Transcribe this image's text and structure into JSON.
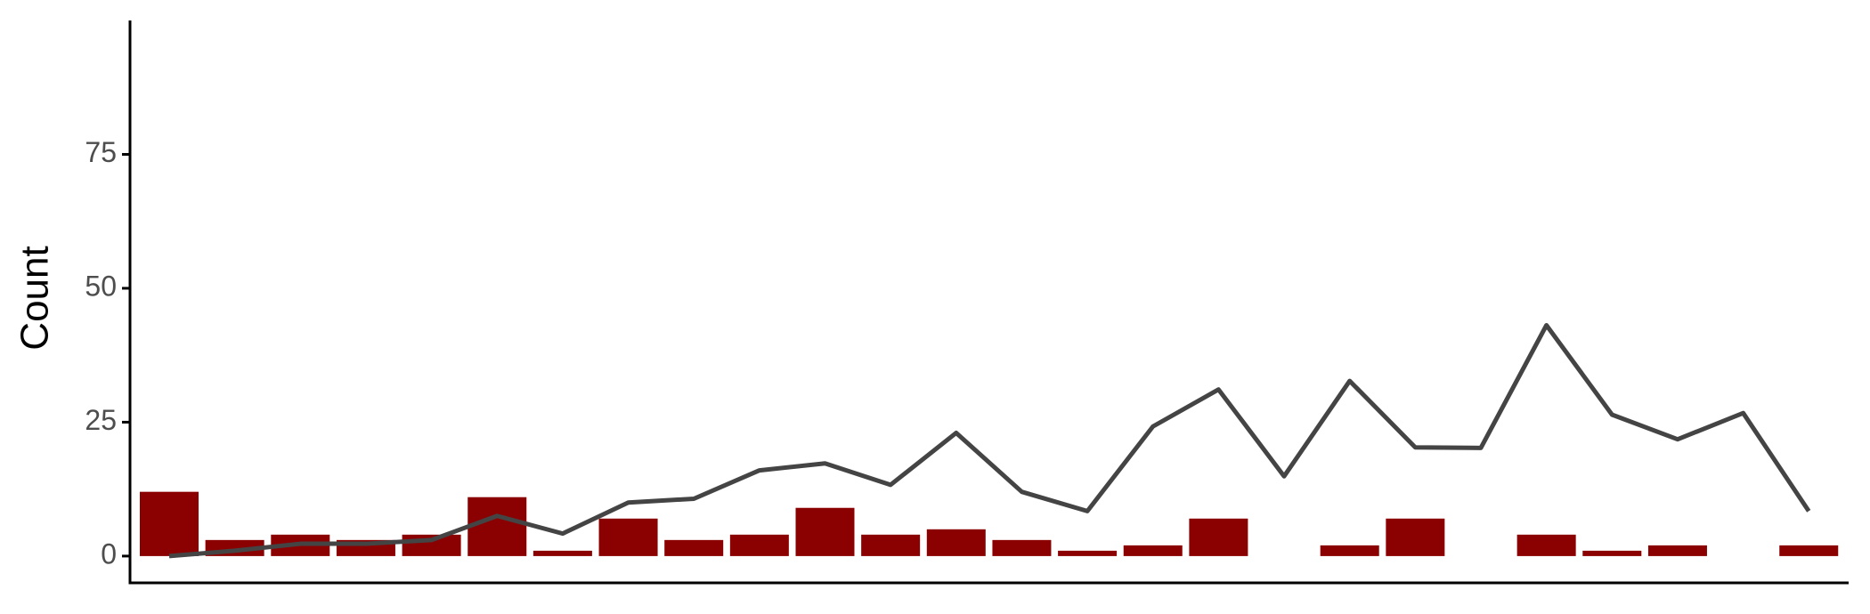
{
  "chart_data": {
    "type": "combo",
    "y_label": "Count",
    "categories": [
      null,
      null,
      null,
      null,
      null,
      null,
      null,
      null,
      null,
      null,
      null,
      null,
      null,
      null,
      null,
      null,
      null,
      null,
      null,
      null,
      null,
      null,
      null,
      null,
      null,
      null
    ],
    "series": [
      {
        "type": "bar",
        "color": "#8b0000",
        "values": [
          12,
          3,
          4,
          3,
          4,
          11,
          1,
          7,
          3,
          4,
          9,
          4,
          5,
          3,
          1,
          2,
          7,
          0,
          2,
          7,
          0,
          4,
          1,
          2,
          0,
          2
        ]
      },
      {
        "type": "line",
        "color": "#444444",
        "values": [
          0,
          1,
          2.3,
          2.3,
          3,
          7.5,
          4.2,
          10,
          10.7,
          16,
          17.3,
          13.3,
          23,
          12,
          8.4,
          24.2,
          31.1,
          14.9,
          32.7,
          20.3,
          20.2,
          43.1,
          26.4,
          21.8,
          26.7,
          8.4
        ]
      }
    ],
    "ylim": [
      -5,
      100
    ],
    "yticks": [
      0,
      25,
      50,
      75
    ]
  }
}
